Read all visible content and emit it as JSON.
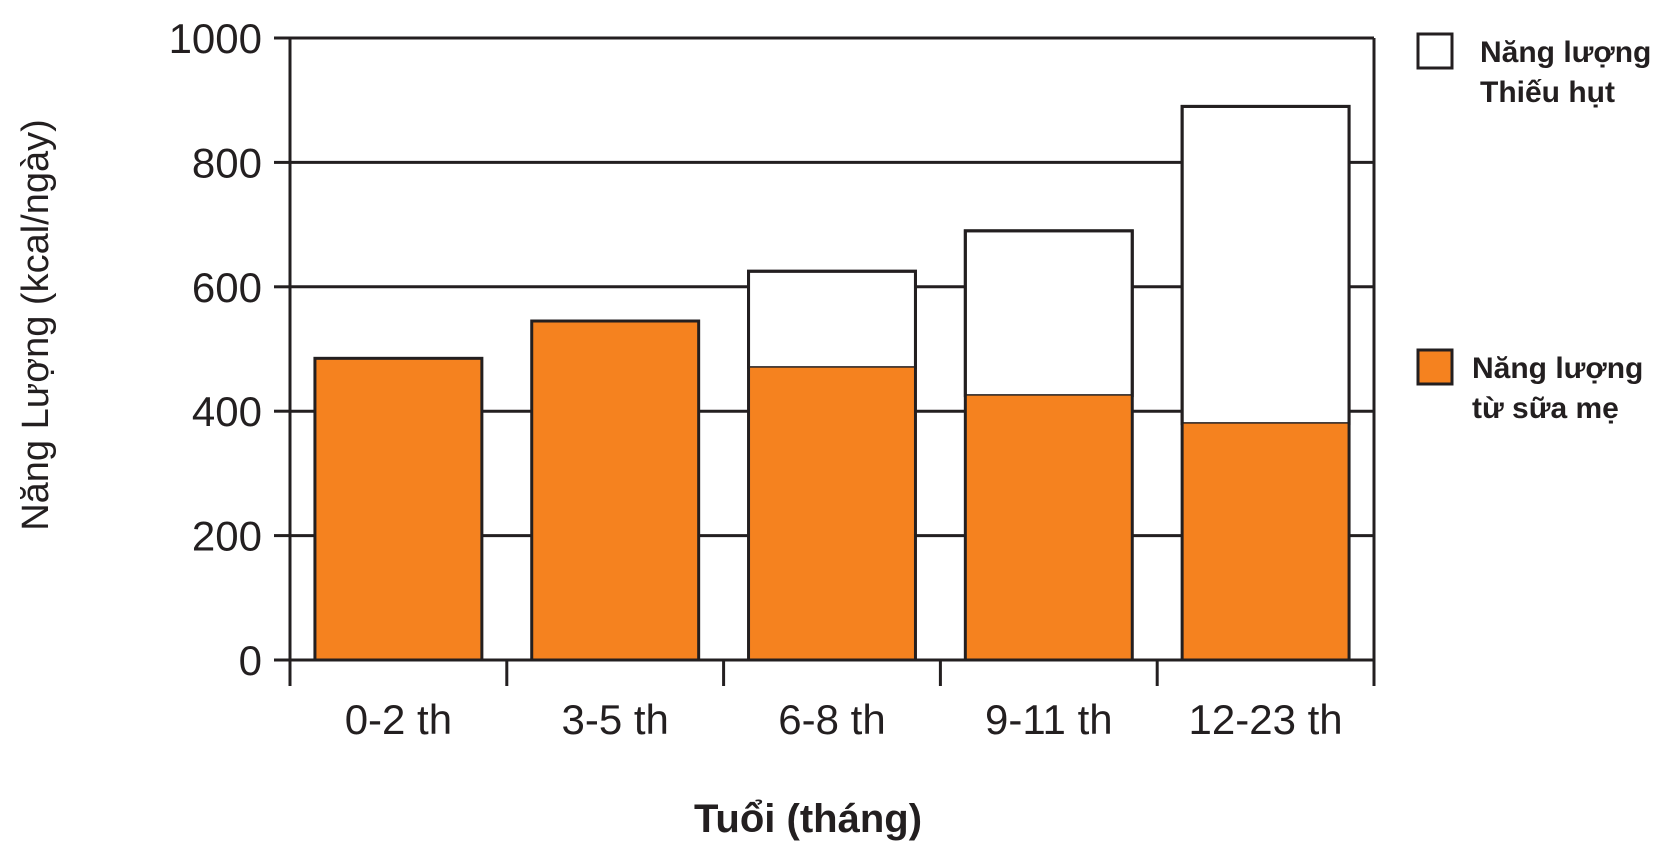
{
  "chart_data": {
    "type": "bar",
    "stacked": true,
    "title": "",
    "xlabel": "Tuổi (tháng)",
    "ylabel": "Năng Lượng (kcal/ngày)",
    "ylim": [
      0,
      1000
    ],
    "yticks": [
      "0",
      "200",
      "400",
      "600",
      "800",
      "1000"
    ],
    "grid": true,
    "legend_position": "right",
    "categories": [
      "0-2 th",
      "3-5 th",
      "6-8 th",
      "9-11 th",
      "12-23 th"
    ],
    "series": [
      {
        "name": "Năng lượng từ sữa mẹ",
        "values": [
          485,
          545,
          470,
          425,
          380
        ]
      },
      {
        "name": "Năng lượng Thiếu hụt",
        "values": [
          0,
          0,
          155,
          265,
          510
        ]
      }
    ],
    "totals": [
      485,
      545,
      625,
      690,
      890
    ]
  },
  "legend": [
    {
      "series": 1,
      "lines": [
        "Năng lượng",
        "Thiếu hụt"
      ]
    },
    {
      "series": 0,
      "lines": [
        "Năng lượng",
        "từ sữa mẹ"
      ]
    }
  ],
  "colors": {
    "breastmilk": "#f5821f",
    "gap": "#ffffff",
    "stroke": "#231f20"
  }
}
